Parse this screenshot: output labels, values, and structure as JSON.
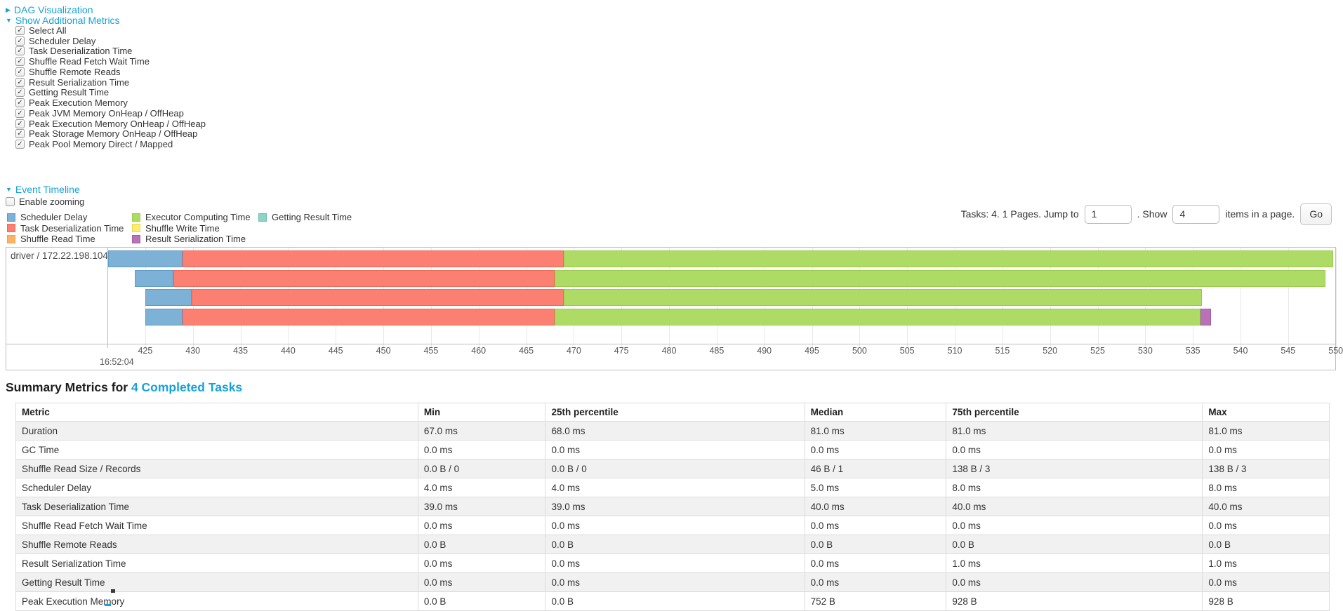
{
  "sections": {
    "dag_toggle": "DAG Visualization",
    "metrics_toggle": "Show Additional Metrics",
    "timeline_toggle": "Event Timeline",
    "enable_zooming_label": "Enable zooming"
  },
  "metric_checkboxes": [
    "Select All",
    "Scheduler Delay",
    "Task Deserialization Time",
    "Shuffle Read Fetch Wait Time",
    "Shuffle Remote Reads",
    "Result Serialization Time",
    "Getting Result Time",
    "Peak Execution Memory",
    "Peak JVM Memory OnHeap / OffHeap",
    "Peak Execution Memory OnHeap / OffHeap",
    "Peak Storage Memory OnHeap / OffHeap",
    "Peak Pool Memory Direct / Mapped"
  ],
  "pagination": {
    "prefix": "Tasks: 4. 1 Pages. Jump to",
    "jump_value": "1",
    "middle": ". Show",
    "show_value": "4",
    "suffix": "items in a page.",
    "go_label": "Go"
  },
  "chart_data": {
    "type": "timeline-gantt",
    "group_label": "driver / 172.22.198.104",
    "axis": {
      "unit": "ms within second",
      "min": 421.1,
      "max": 549.95,
      "tick_start": 425,
      "tick_end": 550,
      "tick_step": 5,
      "major_label": "16:52:04"
    },
    "legend": [
      {
        "key": "scheduler-delay",
        "label": "Scheduler Delay",
        "color": "#7DB1D5",
        "border": "#5E9BC6"
      },
      {
        "key": "task-deserialization",
        "label": "Task Deserialization Time",
        "color": "#FC8071",
        "border": "#EF685A"
      },
      {
        "key": "shuffle-read",
        "label": "Shuffle Read Time",
        "color": "#FDB462",
        "border": "#F0A14C"
      },
      {
        "key": "executor-computing",
        "label": "Executor Computing Time",
        "color": "#AEDB66",
        "border": "#9ACB49"
      },
      {
        "key": "shuffle-write",
        "label": "Shuffle Write Time",
        "color": "#FFED6F",
        "border": "#E8D44F"
      },
      {
        "key": "result-serialization",
        "label": "Result Serialization Time",
        "color": "#B873B8",
        "border": "#A25CA3"
      },
      {
        "key": "getting-result",
        "label": "Getting Result Time",
        "color": "#8DD3C7",
        "border": "#6FBDB0"
      }
    ],
    "tasks": [
      {
        "segments": [
          {
            "type": "scheduler-delay",
            "start": 421.1,
            "end": 428.91
          },
          {
            "type": "task-deserialization",
            "start": 428.91,
            "end": 468.93
          },
          {
            "type": "executor-computing",
            "start": 468.93,
            "end": 549.73
          }
        ]
      },
      {
        "segments": [
          {
            "type": "scheduler-delay",
            "start": 423.89,
            "end": 427.95
          },
          {
            "type": "task-deserialization",
            "start": 427.95,
            "end": 467.97
          },
          {
            "type": "executor-computing",
            "start": 467.97,
            "end": 548.92
          }
        ]
      },
      {
        "segments": [
          {
            "type": "scheduler-delay",
            "start": 425.0,
            "end": 429.87
          },
          {
            "type": "task-deserialization",
            "start": 429.87,
            "end": 468.93
          },
          {
            "type": "executor-computing",
            "start": 468.93,
            "end": 535.93
          }
        ]
      },
      {
        "segments": [
          {
            "type": "scheduler-delay",
            "start": 425.0,
            "end": 428.91
          },
          {
            "type": "task-deserialization",
            "start": 428.91,
            "end": 467.97
          },
          {
            "type": "executor-computing",
            "start": 467.97,
            "end": 535.78
          },
          {
            "type": "result-serialization",
            "start": 535.78,
            "end": 536.89
          }
        ]
      }
    ]
  },
  "summary": {
    "heading_prefix": "Summary Metrics for ",
    "heading_link": "4 Completed Tasks",
    "table": {
      "columns": [
        "Metric",
        "Min",
        "25th percentile",
        "Median",
        "75th percentile",
        "Max"
      ],
      "rows": [
        [
          "Duration",
          "67.0 ms",
          "68.0 ms",
          "81.0 ms",
          "81.0 ms",
          "81.0 ms"
        ],
        [
          "GC Time",
          "0.0 ms",
          "0.0 ms",
          "0.0 ms",
          "0.0 ms",
          "0.0 ms"
        ],
        [
          "Shuffle Read Size / Records",
          "0.0 B / 0",
          "0.0 B / 0",
          "46 B / 1",
          "138 B / 3",
          "138 B / 3"
        ],
        [
          "Scheduler Delay",
          "4.0 ms",
          "4.0 ms",
          "5.0 ms",
          "8.0 ms",
          "8.0 ms"
        ],
        [
          "Task Deserialization Time",
          "39.0 ms",
          "39.0 ms",
          "40.0 ms",
          "40.0 ms",
          "40.0 ms"
        ],
        [
          "Shuffle Read Fetch Wait Time",
          "0.0 ms",
          "0.0 ms",
          "0.0 ms",
          "0.0 ms",
          "0.0 ms"
        ],
        [
          "Shuffle Remote Reads",
          "0.0 B",
          "0.0 B",
          "0.0 B",
          "0.0 B",
          "0.0 B"
        ],
        [
          "Result Serialization Time",
          "0.0 ms",
          "0.0 ms",
          "0.0 ms",
          "1.0 ms",
          "1.0 ms"
        ],
        [
          "Getting Result Time",
          "0.0 ms",
          "0.0 ms",
          "0.0 ms",
          "0.0 ms",
          "0.0 ms"
        ],
        [
          "Peak Execution Memory",
          "0.0 B",
          "0.0 B",
          "752 B",
          "928 B",
          "928 B"
        ]
      ]
    }
  },
  "colors": {
    "link": "#16A2D7"
  }
}
